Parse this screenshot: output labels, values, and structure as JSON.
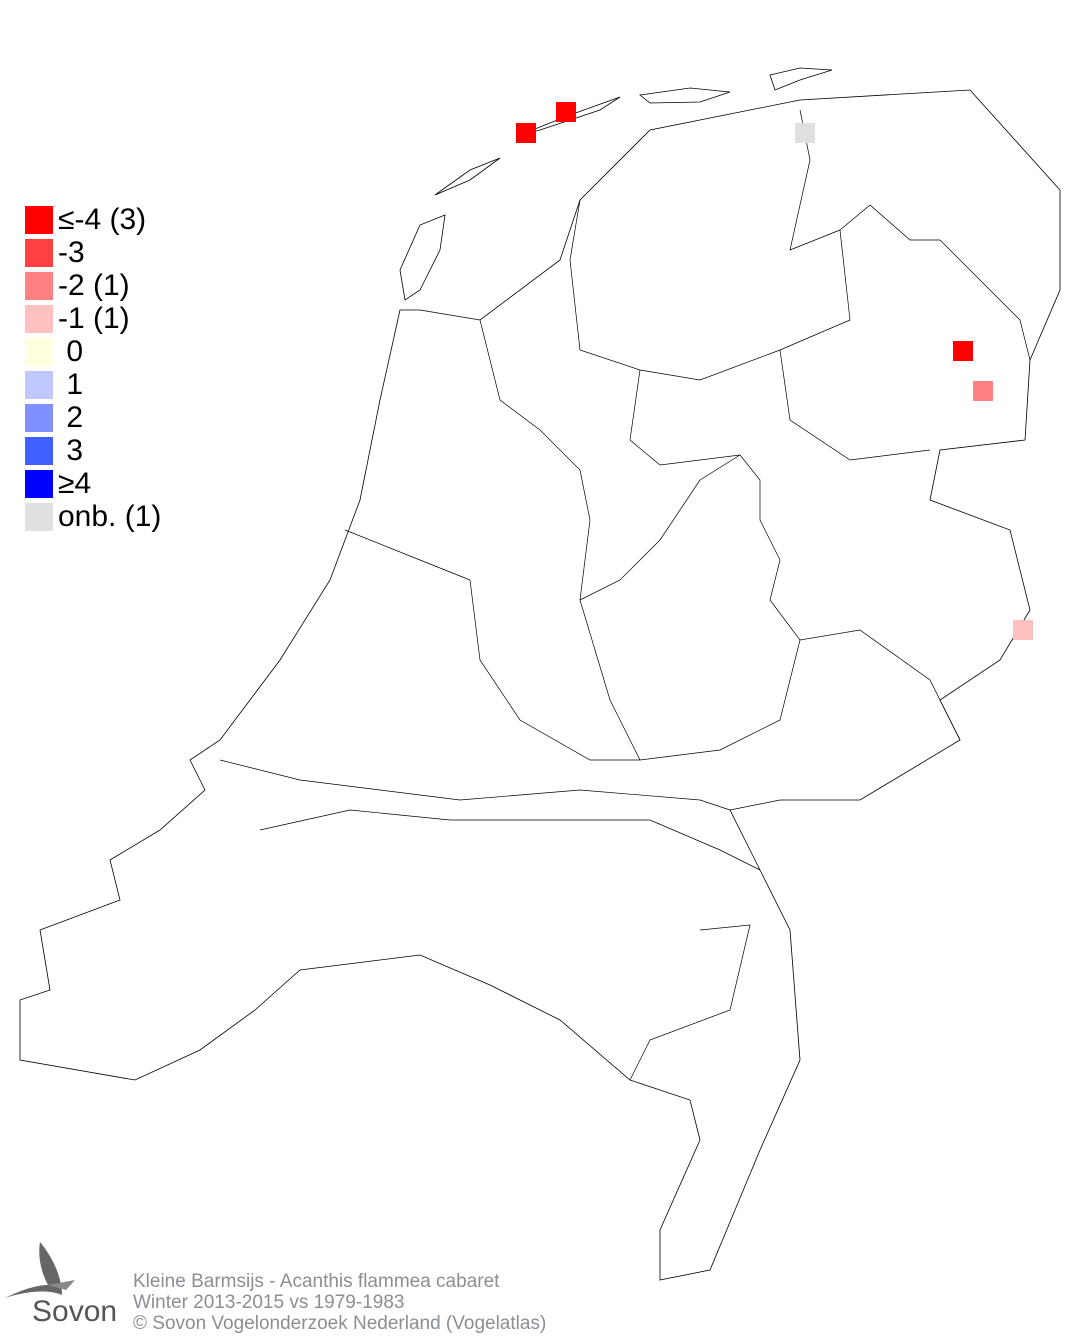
{
  "legend": [
    {
      "label": "≤-4 (3)",
      "color": "#ff0000"
    },
    {
      "label": "-3",
      "color": "#ff4040"
    },
    {
      "label": "-2 (1)",
      "color": "#ff8080"
    },
    {
      "label": "-1 (1)",
      "color": "#ffc0c0"
    },
    {
      "label": " 0",
      "color": "#ffffe0"
    },
    {
      "label": " 1",
      "color": "#c0c8ff"
    },
    {
      "label": " 2",
      "color": "#8090ff"
    },
    {
      "label": " 3",
      "color": "#4060ff"
    },
    {
      "label": "≥4",
      "color": "#0000ff"
    },
    {
      "label": "onb. (1)",
      "color": "#e0e0e0"
    }
  ],
  "cells": [
    {
      "class": "≤-4",
      "color": "#ff0000",
      "location": "Vlieland"
    },
    {
      "class": "≤-4",
      "color": "#ff0000",
      "location": "Terschelling"
    },
    {
      "class": "≤-4",
      "color": "#ff0000",
      "location": "Drenthe"
    },
    {
      "class": "-2",
      "color": "#ff8080",
      "location": "Drenthe"
    },
    {
      "class": "-1",
      "color": "#ffc0c0",
      "location": "Overijssel"
    },
    {
      "class": "onb.",
      "color": "#e0e0e0",
      "location": "Friesland coast"
    }
  ],
  "footer": {
    "line1": "Kleine Barmsijs - Acanthis flammea cabaret",
    "line2": "Winter 2013-2015 vs 1979-1983",
    "line3": "© Sovon Vogelonderzoek Nederland (Vogelatlas)"
  },
  "logo": {
    "text": "Sovon",
    "icon": "swallow-icon"
  }
}
